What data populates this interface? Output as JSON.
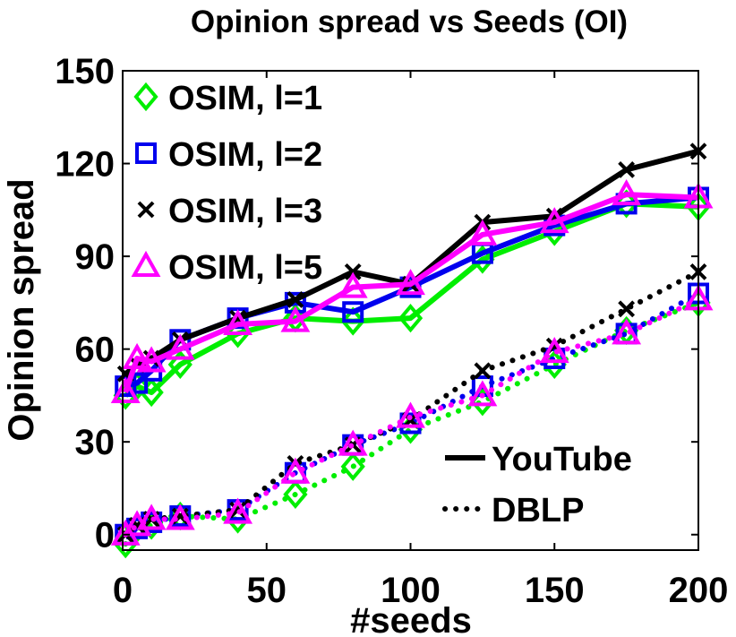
{
  "chart_data": {
    "type": "line",
    "title": "Opinion spread vs Seeds (OI)",
    "xlabel": "#seeds",
    "ylabel": "Opinion spread",
    "xlim": [
      0,
      200
    ],
    "ylim": [
      -5,
      150
    ],
    "xticks": [
      0,
      50,
      100,
      150,
      200
    ],
    "yticks": [
      0,
      30,
      60,
      90,
      120,
      150
    ],
    "x": [
      1,
      5,
      10,
      20,
      40,
      60,
      80,
      100,
      125,
      150,
      175,
      200
    ],
    "grid": false,
    "series": [
      {
        "name": "OSIM, l=1",
        "dataset": "YouTube",
        "color": "#00ee00",
        "marker": "diamond",
        "dash": "solid",
        "values": [
          45,
          48,
          46,
          55,
          65,
          70,
          69,
          70,
          89,
          98,
          107,
          106
        ]
      },
      {
        "name": "OSIM, l=2",
        "dataset": "YouTube",
        "color": "#0000ee",
        "marker": "square",
        "dash": "solid",
        "values": [
          48,
          49,
          53,
          63,
          70,
          75,
          72,
          80,
          91,
          100,
          107,
          109
        ]
      },
      {
        "name": "OSIM, l=3",
        "dataset": "YouTube",
        "color": "#000000",
        "marker": "x",
        "dash": "solid",
        "values": [
          52,
          55,
          57,
          63,
          70,
          76,
          85,
          81,
          101,
          103,
          118,
          124
        ]
      },
      {
        "name": "OSIM, l=5",
        "dataset": "YouTube",
        "color": "#ff00ff",
        "marker": "triangle",
        "dash": "solid",
        "values": [
          46,
          57,
          56,
          60,
          68,
          69,
          80,
          81,
          97,
          101,
          110,
          109
        ]
      },
      {
        "name": "OSIM, l=1",
        "dataset": "DBLP",
        "color": "#00ee00",
        "marker": "diamond",
        "dash": "dotted",
        "values": [
          -3,
          2,
          3,
          6,
          5,
          13,
          22,
          34,
          43,
          55,
          66,
          75
        ]
      },
      {
        "name": "OSIM, l=2",
        "dataset": "DBLP",
        "color": "#0000ee",
        "marker": "square",
        "dash": "dotted",
        "values": [
          0,
          2,
          4,
          6,
          8,
          20,
          29,
          36,
          48,
          57,
          65,
          78
        ]
      },
      {
        "name": "OSIM, l=3",
        "dataset": "DBLP",
        "color": "#000000",
        "marker": "x",
        "dash": "dotted",
        "values": [
          0,
          3,
          5,
          6,
          8,
          23,
          29,
          37,
          53,
          61,
          73,
          85
        ]
      },
      {
        "name": "OSIM, l=5",
        "dataset": "DBLP",
        "color": "#ff00ff",
        "marker": "triangle",
        "dash": "dotted",
        "values": [
          0,
          3,
          5,
          5,
          7,
          20,
          29,
          38,
          45,
          59,
          65,
          76
        ]
      }
    ],
    "legend_markers": [
      {
        "label": "OSIM, l=1",
        "color": "#00ee00",
        "marker": "diamond"
      },
      {
        "label": "OSIM, l=2",
        "color": "#0000ee",
        "marker": "square"
      },
      {
        "label": "OSIM, l=3",
        "color": "#000000",
        "marker": "x"
      },
      {
        "label": "OSIM, l=5",
        "color": "#ff00ff",
        "marker": "triangle"
      }
    ],
    "legend_lines": [
      {
        "label": "YouTube",
        "dash": "solid"
      },
      {
        "label": "DBLP",
        "dash": "dotted"
      }
    ],
    "legend_marker_placement": "top-left",
    "legend_line_placement": "bottom-right"
  }
}
